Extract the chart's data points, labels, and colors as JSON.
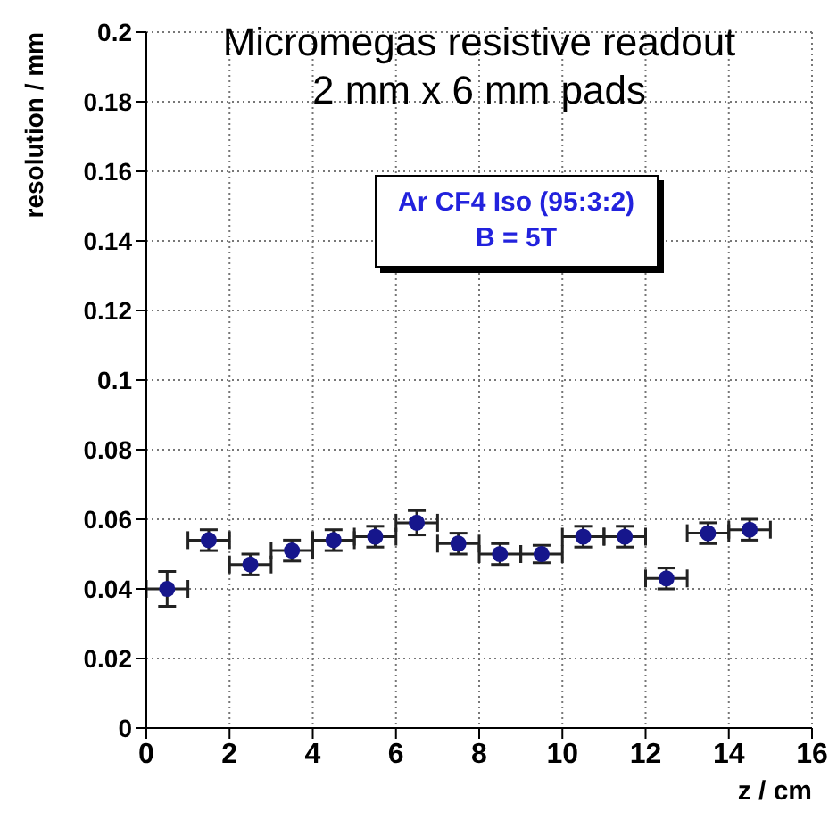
{
  "chart_data": {
    "type": "scatter",
    "title": "Micromegas resistive readout",
    "subtitle": "2 mm x 6 mm pads",
    "xlabel": "z / cm",
    "ylabel": "resolution / mm",
    "annotations": [
      "Ar CF4 Iso (95:3:2)",
      "B = 5T"
    ],
    "x": [
      0.5,
      1.5,
      2.5,
      3.5,
      4.5,
      5.5,
      6.5,
      7.5,
      8.5,
      9.5,
      10.5,
      11.5,
      12.5,
      13.5,
      14.5
    ],
    "values": [
      0.04,
      0.054,
      0.047,
      0.051,
      0.054,
      0.055,
      0.059,
      0.053,
      0.05,
      0.05,
      0.055,
      0.055,
      0.043,
      0.056,
      0.057
    ],
    "errors": [
      0.005,
      0.003,
      0.003,
      0.003,
      0.003,
      0.003,
      0.0035,
      0.003,
      0.003,
      0.0025,
      0.003,
      0.003,
      0.003,
      0.003,
      0.003
    ],
    "xerrors": [
      0.5,
      0.5,
      0.5,
      0.5,
      0.5,
      0.5,
      0.5,
      0.5,
      0.5,
      0.5,
      0.5,
      0.5,
      0.5,
      0.5,
      0.5
    ],
    "color": "#16168c",
    "xlim": [
      0,
      16
    ],
    "xticks": [
      0,
      2,
      4,
      6,
      8,
      10,
      12,
      14,
      16
    ],
    "ylim": [
      0,
      0.2
    ],
    "yticks": [
      0,
      0.02,
      0.04,
      0.06,
      0.08,
      0.1,
      0.12,
      0.14,
      0.16,
      0.18,
      0.2
    ],
    "grid": true,
    "legend": false,
    "marker": "circle"
  }
}
